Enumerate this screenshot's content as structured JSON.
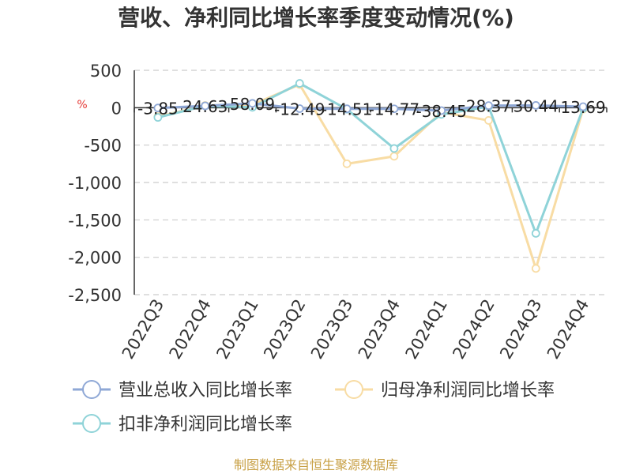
{
  "chart_data": {
    "type": "line",
    "title": "营收、净利同比增长率季度变动情况(%)",
    "ylabel": "%",
    "categories": [
      "2022Q3",
      "2022Q4",
      "2023Q1",
      "2023Q2",
      "2023Q3",
      "2023Q4",
      "2024Q1",
      "2024Q2",
      "2024Q3",
      "2024Q4"
    ],
    "ylim": [
      -2500,
      500
    ],
    "yticks": [
      500,
      0,
      -500,
      -1000,
      -1500,
      -2000,
      -2500
    ],
    "ytick_labels": [
      "500",
      "0",
      "-500",
      "-1,000",
      "-1,500",
      "-2,000",
      "-2,500"
    ],
    "grid": true,
    "legend_position": "bottom",
    "series": [
      {
        "name": "营业总收入同比增长率",
        "color": "#8fa8d6",
        "values": [
          -3.85,
          24.63,
          58.09,
          -12.49,
          -14.51,
          -14.77,
          -38.45,
          28.37,
          30.44,
          13.69
        ],
        "labels": [
          "-3.85",
          "24.63",
          "58.09",
          "-12.49",
          "-14.51",
          "-14.77",
          "-38.45",
          "28.37",
          "30.44",
          "13.69"
        ]
      },
      {
        "name": "归母净利润同比增长率",
        "color": "#f8dca4",
        "values": [
          -120,
          30,
          40,
          310,
          -750,
          -650,
          -60,
          -170,
          -2150,
          -20
        ]
      },
      {
        "name": "扣非净利润同比增长率",
        "color": "#8fd3d8",
        "values": [
          -130,
          25,
          5,
          325,
          -20,
          -545,
          -90,
          15,
          -1680,
          -10
        ]
      }
    ]
  },
  "source": "制图数据来自恒生聚源数据库"
}
